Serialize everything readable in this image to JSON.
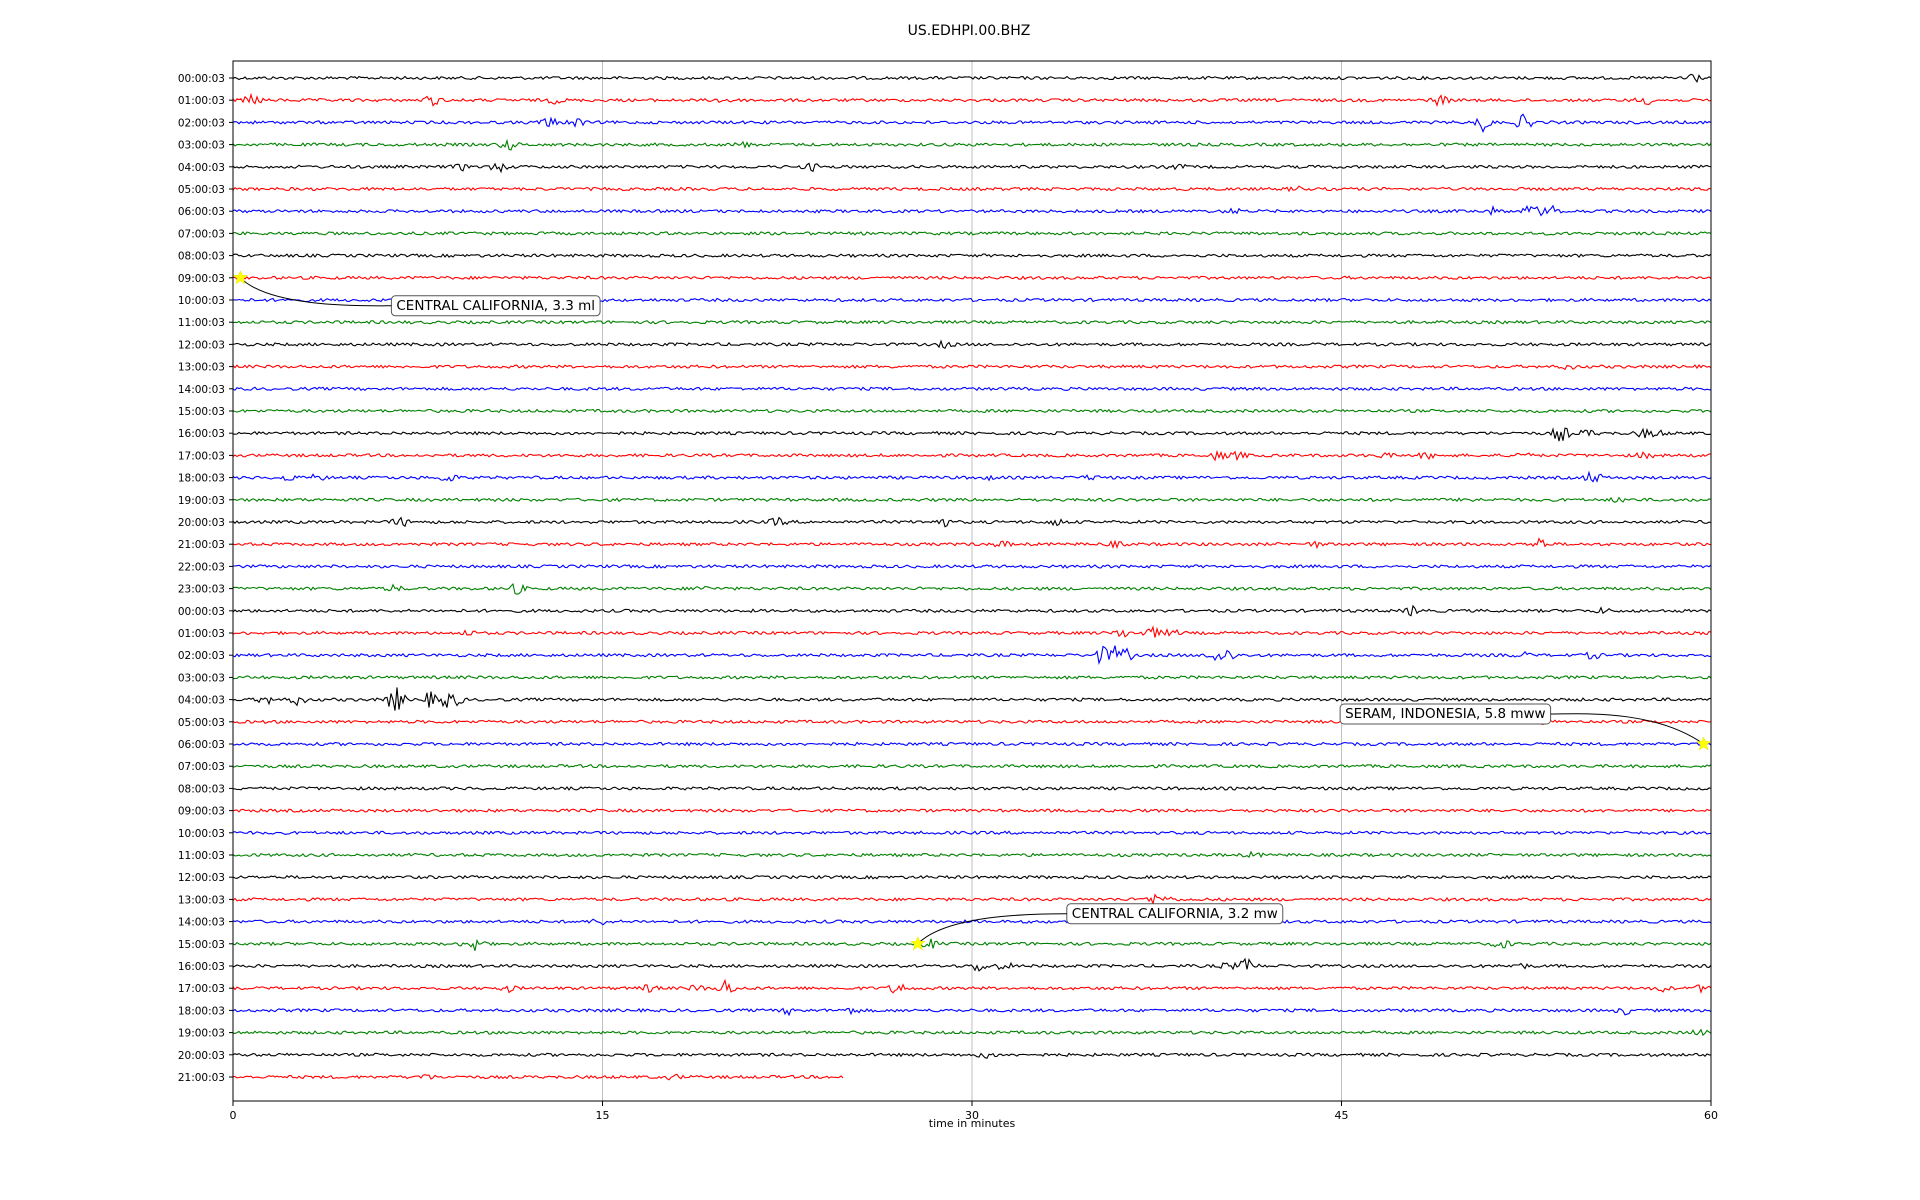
{
  "chart_data": {
    "type": "line",
    "title": "US.EDHPI.00.BHZ",
    "xlabel": "time in minutes",
    "ylabel": "",
    "xlim": [
      0,
      60
    ],
    "x_ticks": [
      "0",
      "15",
      "30",
      "45",
      "60"
    ],
    "x_tick_values": [
      0,
      15,
      30,
      45,
      60
    ],
    "grid": "vertical",
    "trace_colors": [
      "#000000",
      "#ff0000",
      "#0000ff",
      "#008000"
    ],
    "rows": [
      {
        "label": "00:00:03",
        "bursts": [
          [
            59.2,
            1.2
          ]
        ]
      },
      {
        "label": "01:00:03",
        "bursts": [
          [
            0.8,
            1.0
          ],
          [
            8.1,
            0.9
          ],
          [
            13.1,
            0.5
          ],
          [
            20.0,
            0.6
          ],
          [
            49.0,
            0.9
          ],
          [
            57.3,
            0.8
          ]
        ]
      },
      {
        "label": "02:00:03",
        "bursts": [
          [
            12.8,
            0.9
          ],
          [
            13.9,
            0.8
          ],
          [
            50.8,
            1.6
          ],
          [
            52.4,
            1.3
          ]
        ]
      },
      {
        "label": "03:00:03",
        "bursts": [
          [
            11.2,
            0.9
          ],
          [
            20.7,
            0.4
          ]
        ]
      },
      {
        "label": "04:00:03",
        "bursts": [
          [
            9.3,
            0.5
          ],
          [
            10.8,
            0.8
          ],
          [
            23.5,
            0.6
          ],
          [
            38.3,
            0.4
          ]
        ]
      },
      {
        "label": "05:00:03",
        "bursts": [
          [
            43.2,
            0.4
          ]
        ]
      },
      {
        "label": "06:00:03",
        "bursts": [
          [
            40.6,
            0.4
          ],
          [
            51.2,
            0.6
          ],
          [
            52.7,
            1.1
          ],
          [
            53.3,
            0.9
          ],
          [
            53.6,
            0.8
          ]
        ]
      },
      {
        "label": "07:00:03",
        "bursts": []
      },
      {
        "label": "08:00:03",
        "bursts": []
      },
      {
        "label": "09:00:03",
        "bursts": []
      },
      {
        "label": "10:00:03",
        "bursts": []
      },
      {
        "label": "11:00:03",
        "bursts": []
      },
      {
        "label": "12:00:03",
        "bursts": [
          [
            28.9,
            0.5
          ]
        ]
      },
      {
        "label": "13:00:03",
        "bursts": [
          [
            54.2,
            0.4
          ]
        ]
      },
      {
        "label": "14:00:03",
        "bursts": []
      },
      {
        "label": "15:00:03",
        "bursts": []
      },
      {
        "label": "16:00:03",
        "bursts": [
          [
            53.9,
            1.5
          ],
          [
            55.0,
            0.6
          ],
          [
            57.3,
            0.7
          ],
          [
            57.8,
            0.6
          ]
        ]
      },
      {
        "label": "17:00:03",
        "bursts": [
          [
            40.0,
            0.8
          ],
          [
            40.8,
            0.6
          ],
          [
            46.7,
            0.4
          ],
          [
            48.5,
            0.5
          ],
          [
            52.3,
            0.6
          ],
          [
            57.3,
            0.5
          ]
        ]
      },
      {
        "label": "18:00:03",
        "bursts": [
          [
            2.2,
            0.5
          ],
          [
            3.4,
            0.5
          ],
          [
            8.7,
            0.8
          ],
          [
            30.5,
            0.4
          ],
          [
            34.9,
            0.4
          ],
          [
            55.2,
            1.1
          ]
        ]
      },
      {
        "label": "19:00:03",
        "bursts": [
          [
            50.2,
            0.4
          ],
          [
            56.3,
            0.4
          ]
        ]
      },
      {
        "label": "20:00:03",
        "bursts": [
          [
            6.8,
            0.8
          ],
          [
            22.1,
            0.7
          ],
          [
            28.8,
            0.8
          ],
          [
            33.4,
            0.6
          ]
        ]
      },
      {
        "label": "21:00:03",
        "bursts": [
          [
            31.2,
            0.5
          ],
          [
            35.8,
            0.4
          ],
          [
            44.0,
            0.4
          ],
          [
            53.0,
            1.1
          ]
        ]
      },
      {
        "label": "22:00:03",
        "bursts": []
      },
      {
        "label": "23:00:03",
        "bursts": [
          [
            6.5,
            0.5
          ],
          [
            11.5,
            0.9
          ],
          [
            19.0,
            0.4
          ]
        ]
      },
      {
        "label": "00:00:03",
        "bursts": [
          [
            47.9,
            0.8
          ],
          [
            55.6,
            0.4
          ]
        ]
      },
      {
        "label": "01:00:03",
        "bursts": [
          [
            9.5,
            0.4
          ],
          [
            36.1,
            0.8
          ],
          [
            37.3,
            1.0
          ],
          [
            38.1,
            0.6
          ]
        ]
      },
      {
        "label": "02:00:03",
        "bursts": [
          [
            35.3,
            1.7
          ],
          [
            35.8,
            1.5
          ],
          [
            36.2,
            1.2
          ],
          [
            39.9,
            1.5
          ],
          [
            40.4,
            1.0
          ],
          [
            52.3,
            0.5
          ],
          [
            55.2,
            0.6
          ]
        ]
      },
      {
        "label": "03:00:03",
        "bursts": []
      },
      {
        "label": "04:00:03",
        "bursts": [
          [
            1.3,
            0.8
          ],
          [
            2.6,
            0.9
          ],
          [
            6.6,
            2.4
          ],
          [
            8.0,
            1.3
          ],
          [
            8.6,
            1.5
          ],
          [
            9.0,
            1.1
          ]
        ]
      },
      {
        "label": "05:00:03",
        "bursts": [
          [
            53.2,
            0.5
          ]
        ]
      },
      {
        "label": "06:00:03",
        "bursts": []
      },
      {
        "label": "07:00:03",
        "bursts": []
      },
      {
        "label": "08:00:03",
        "bursts": []
      },
      {
        "label": "09:00:03",
        "bursts": []
      },
      {
        "label": "10:00:03",
        "bursts": []
      },
      {
        "label": "11:00:03",
        "bursts": [
          [
            41.4,
            0.4
          ]
        ]
      },
      {
        "label": "12:00:03",
        "bursts": []
      },
      {
        "label": "13:00:03",
        "bursts": [
          [
            37.4,
            0.8
          ],
          [
            37.8,
            0.6
          ]
        ]
      },
      {
        "label": "14:00:03",
        "bursts": [
          [
            14.9,
            0.6
          ]
        ]
      },
      {
        "label": "15:00:03",
        "bursts": [
          [
            9.6,
            0.7
          ],
          [
            9.9,
            1.4
          ],
          [
            28.3,
            0.8
          ],
          [
            51.5,
            0.8
          ]
        ]
      },
      {
        "label": "16:00:03",
        "bursts": [
          [
            30.3,
            1.0
          ],
          [
            31.3,
            0.6
          ],
          [
            40.4,
            0.6
          ],
          [
            41.2,
            1.4
          ],
          [
            52.2,
            0.5
          ]
        ]
      },
      {
        "label": "17:00:03",
        "bursts": [
          [
            11.2,
            0.5
          ],
          [
            16.9,
            0.6
          ],
          [
            18.8,
            0.5
          ],
          [
            20.0,
            1.5
          ],
          [
            27.0,
            1.1
          ],
          [
            58.0,
            0.5
          ],
          [
            59.6,
            0.5
          ]
        ]
      },
      {
        "label": "18:00:03",
        "bursts": [
          [
            22.6,
            0.6
          ],
          [
            25.1,
            0.5
          ],
          [
            56.5,
            0.6
          ]
        ]
      },
      {
        "label": "19:00:03",
        "bursts": [
          [
            59.5,
            0.5
          ]
        ]
      },
      {
        "label": "20:00:03",
        "bursts": [
          [
            30.6,
            0.5
          ]
        ]
      },
      {
        "label": "21:00:03",
        "bursts": [
          [
            7.8,
            0.4
          ],
          [
            17.9,
            0.4
          ]
        ],
        "end": 24.8
      }
    ],
    "annotations": [
      {
        "text": "CENTRAL CALIFORNIA, 3.3 ml",
        "row": 9,
        "x": 0.3
      },
      {
        "text": "SERAM, INDONESIA, 5.8 mww",
        "row": 30,
        "x": 59.7
      },
      {
        "text": "CENTRAL CALIFORNIA, 3.2 mw",
        "row": 39,
        "x": 27.8
      }
    ]
  }
}
